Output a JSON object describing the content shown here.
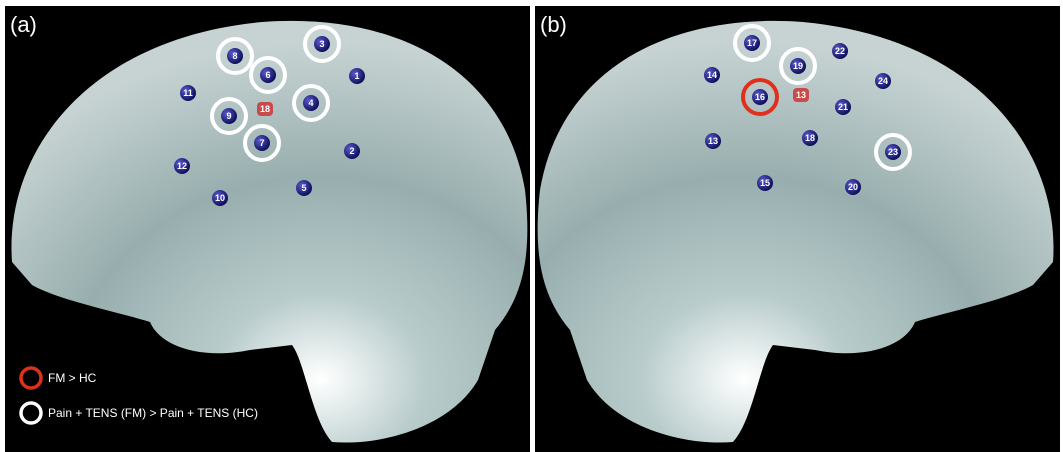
{
  "panels": [
    {
      "label": "(a)",
      "nodes": [
        {
          "label": "8"
        },
        {
          "label": "3"
        },
        {
          "label": "1"
        },
        {
          "label": "6"
        },
        {
          "label": "11"
        },
        {
          "label": "18"
        },
        {
          "label": "4"
        },
        {
          "label": "9"
        },
        {
          "label": "7"
        },
        {
          "label": "2"
        },
        {
          "label": "12"
        },
        {
          "label": "5"
        },
        {
          "label": "10"
        }
      ]
    },
    {
      "label": "(b)",
      "nodes": [
        {
          "label": "17"
        },
        {
          "label": "22"
        },
        {
          "label": "19"
        },
        {
          "label": "14"
        },
        {
          "label": "24"
        },
        {
          "label": "16"
        },
        {
          "label": "13"
        },
        {
          "label": "21"
        },
        {
          "label": "13"
        },
        {
          "label": "18"
        },
        {
          "label": "23"
        },
        {
          "label": "15"
        },
        {
          "label": "20"
        }
      ]
    }
  ],
  "legend": [
    {
      "label": "FM > HC"
    },
    {
      "label": "Pain + TENS (FM) > Pain + TENS (HC)"
    }
  ]
}
